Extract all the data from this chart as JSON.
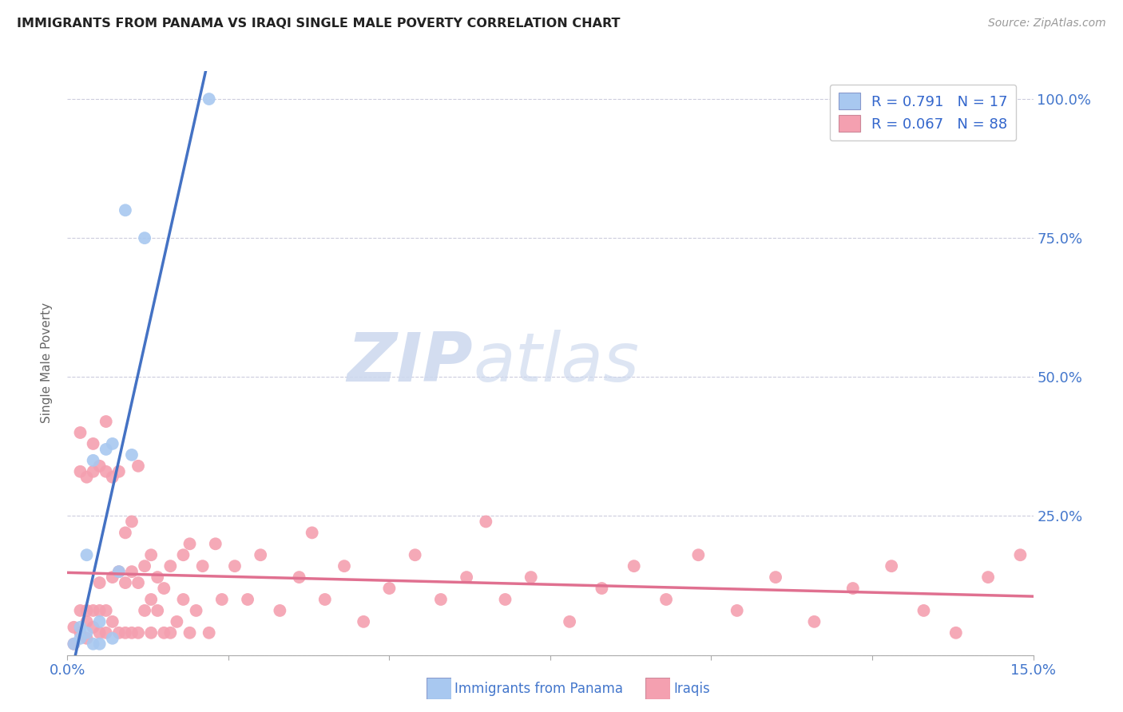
{
  "title": "IMMIGRANTS FROM PANAMA VS IRAQI SINGLE MALE POVERTY CORRELATION CHART",
  "source": "Source: ZipAtlas.com",
  "ylabel": "Single Male Poverty",
  "xlim": [
    0.0,
    0.15
  ],
  "ylim": [
    0.0,
    1.05
  ],
  "xticks": [
    0.0,
    0.025,
    0.05,
    0.075,
    0.1,
    0.125,
    0.15
  ],
  "xtick_labels": [
    "0.0%",
    "",
    "",
    "",
    "",
    "",
    "15.0%"
  ],
  "ytick_positions_right": [
    0.0,
    0.25,
    0.5,
    0.75,
    1.0
  ],
  "ytick_labels_right": [
    "",
    "25.0%",
    "50.0%",
    "75.0%",
    "100.0%"
  ],
  "panama_color": "#a8c8f0",
  "iraqi_color": "#f4a0b0",
  "panama_R": 0.791,
  "panama_N": 17,
  "iraqi_R": 0.067,
  "iraqi_N": 88,
  "trendline_panama_color": "#4472c4",
  "trendline_iraqi_color": "#e07090",
  "dashed_line_color": "#aabbdd",
  "watermark_zip": "ZIP",
  "watermark_atlas": "atlas",
  "panama_x": [
    0.001,
    0.002,
    0.002,
    0.003,
    0.003,
    0.004,
    0.004,
    0.005,
    0.005,
    0.006,
    0.007,
    0.007,
    0.008,
    0.009,
    0.01,
    0.012,
    0.022
  ],
  "panama_y": [
    0.02,
    0.03,
    0.05,
    0.04,
    0.18,
    0.02,
    0.35,
    0.06,
    0.02,
    0.37,
    0.03,
    0.38,
    0.15,
    0.8,
    0.36,
    0.75,
    1.0
  ],
  "iraqi_x": [
    0.001,
    0.001,
    0.002,
    0.002,
    0.002,
    0.002,
    0.003,
    0.003,
    0.003,
    0.003,
    0.004,
    0.004,
    0.004,
    0.004,
    0.005,
    0.005,
    0.005,
    0.005,
    0.006,
    0.006,
    0.006,
    0.006,
    0.007,
    0.007,
    0.007,
    0.008,
    0.008,
    0.008,
    0.009,
    0.009,
    0.009,
    0.01,
    0.01,
    0.01,
    0.011,
    0.011,
    0.011,
    0.012,
    0.012,
    0.013,
    0.013,
    0.013,
    0.014,
    0.014,
    0.015,
    0.015,
    0.016,
    0.016,
    0.017,
    0.018,
    0.018,
    0.019,
    0.019,
    0.02,
    0.021,
    0.022,
    0.023,
    0.024,
    0.026,
    0.028,
    0.03,
    0.033,
    0.036,
    0.038,
    0.04,
    0.043,
    0.046,
    0.05,
    0.054,
    0.058,
    0.062,
    0.065,
    0.068,
    0.072,
    0.078,
    0.083,
    0.088,
    0.093,
    0.098,
    0.104,
    0.11,
    0.116,
    0.122,
    0.128,
    0.133,
    0.138,
    0.143,
    0.148
  ],
  "iraqi_y": [
    0.02,
    0.05,
    0.04,
    0.08,
    0.33,
    0.4,
    0.03,
    0.06,
    0.08,
    0.32,
    0.05,
    0.08,
    0.33,
    0.38,
    0.04,
    0.08,
    0.13,
    0.34,
    0.04,
    0.08,
    0.33,
    0.42,
    0.06,
    0.14,
    0.32,
    0.04,
    0.15,
    0.33,
    0.04,
    0.13,
    0.22,
    0.04,
    0.15,
    0.24,
    0.04,
    0.13,
    0.34,
    0.08,
    0.16,
    0.04,
    0.1,
    0.18,
    0.08,
    0.14,
    0.04,
    0.12,
    0.04,
    0.16,
    0.06,
    0.1,
    0.18,
    0.04,
    0.2,
    0.08,
    0.16,
    0.04,
    0.2,
    0.1,
    0.16,
    0.1,
    0.18,
    0.08,
    0.14,
    0.22,
    0.1,
    0.16,
    0.06,
    0.12,
    0.18,
    0.1,
    0.14,
    0.24,
    0.1,
    0.14,
    0.06,
    0.12,
    0.16,
    0.1,
    0.18,
    0.08,
    0.14,
    0.06,
    0.12,
    0.16,
    0.08,
    0.04,
    0.14,
    0.18
  ]
}
